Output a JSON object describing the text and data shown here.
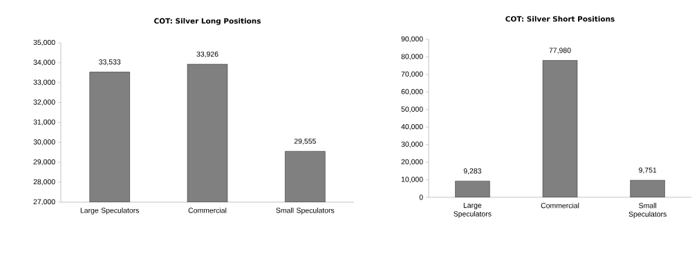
{
  "chart_data": [
    {
      "type": "bar",
      "title": "COT: Silver Long Positions",
      "categories": [
        "Large Speculators",
        "Commercial",
        "Small Speculators"
      ],
      "values": [
        33533,
        33926,
        29555
      ],
      "color": "#808080",
      "ylim": [
        27000,
        35000
      ],
      "yticks": [
        {
          "value": 27000,
          "label": "27,000"
        },
        {
          "value": 28000,
          "label": "28,000"
        },
        {
          "value": 29000,
          "label": "29,000"
        },
        {
          "value": 30000,
          "label": "30,000"
        },
        {
          "value": 31000,
          "label": "31,000"
        },
        {
          "value": 32000,
          "label": "32,000"
        },
        {
          "value": 33000,
          "label": "33,000"
        },
        {
          "value": 34000,
          "label": "34,000"
        },
        {
          "value": 35000,
          "label": "35,000"
        }
      ],
      "value_labels": [
        "33,533",
        "33,926",
        "29,555"
      ]
    },
    {
      "type": "bar",
      "title": "COT: Silver Short  Positions",
      "categories": [
        "Large Speculators",
        "Commercial",
        "Small Speculators"
      ],
      "values": [
        9283,
        77980,
        9751
      ],
      "color": "#808080",
      "ylim": [
        0,
        90000
      ],
      "yticks": [
        0,
        {
          "value": 10000,
          "label": "10,000"
        },
        {
          "value": 20000,
          "label": "20,000"
        },
        {
          "value": 30000,
          "label": "30,000"
        },
        {
          "value": 40000,
          "label": "40,000"
        },
        {
          "value": 50000,
          "label": "50,000"
        },
        {
          "value": 60000,
          "label": "60,000"
        },
        {
          "value": 70000,
          "label": "70,000"
        },
        {
          "value": 80000,
          "label": "80,000"
        },
        {
          "value": 90000,
          "label": "90,000"
        }
      ],
      "value_labels": [
        "9,283",
        "77,980",
        "9,751"
      ]
    }
  ]
}
